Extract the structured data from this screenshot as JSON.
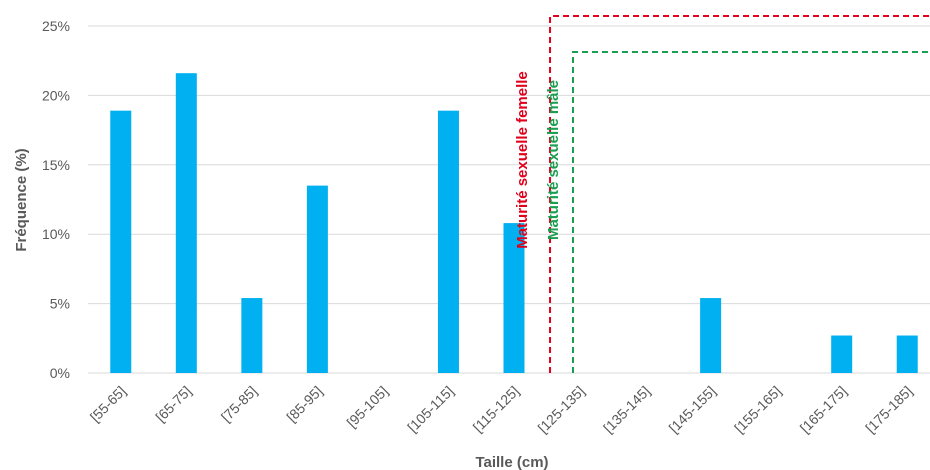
{
  "chart_data": {
    "type": "bar",
    "xlabel": "Taille (cm)",
    "ylabel": "Fréquence (%)",
    "categories": [
      "[55-65]",
      "[65-75]",
      "[75-85]",
      "[85-95]",
      "[95-105]",
      "[105-115]",
      "[115-125]",
      "[125-135]",
      "[135-145]",
      "[145-155]",
      "[155-165]",
      "[165-175]",
      "[175-185]"
    ],
    "values": [
      18.9,
      21.6,
      5.4,
      13.5,
      0,
      18.9,
      10.8,
      0,
      0,
      5.4,
      0,
      2.7,
      2.7
    ],
    "ylim": [
      0,
      25
    ],
    "yticks": [
      0,
      5,
      10,
      15,
      20,
      25
    ],
    "ytick_labels": [
      "0%",
      "5%",
      "10%",
      "15%",
      "20%",
      "25%"
    ],
    "grid": true,
    "colors": {
      "bar": "#00b0f0",
      "female": "#e0001b",
      "male": "#1a9e4f",
      "grid": "#d9d9d9"
    },
    "annotations": [
      {
        "label": "Maturité sexuelle femelle",
        "x": 125.5,
        "color": "#e0001b"
      },
      {
        "label": "Maturité sexuelle mâle",
        "x": 129,
        "color": "#1a9e4f"
      }
    ]
  }
}
